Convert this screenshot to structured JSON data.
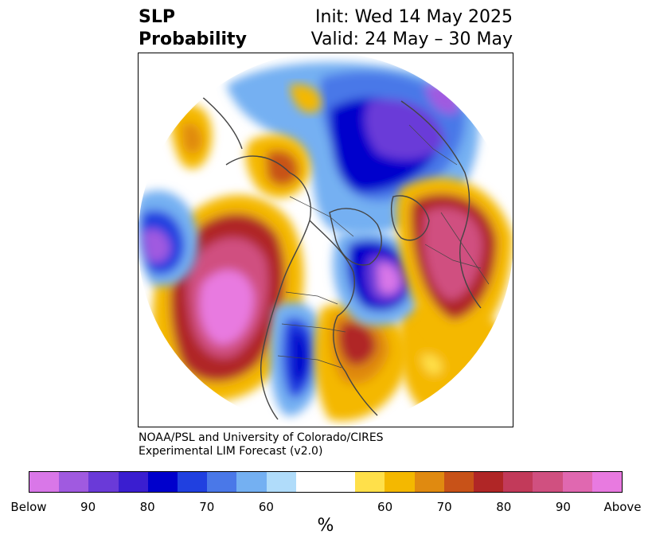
{
  "title": {
    "left_line1": "SLP",
    "left_line2": "Probability",
    "right_line1": "Init: Wed 14 May 2025",
    "right_line2": "Valid: 24 May – 30 May"
  },
  "credit": {
    "line1": "NOAA/PSL and University of Colorado/CIRES",
    "line2": "Experimental LIM Forecast (v2.0)"
  },
  "colorbar": {
    "unit": "%",
    "colors": [
      "#d977e8",
      "#a05ae0",
      "#6a3ad8",
      "#3a1ed0",
      "#0000cc",
      "#2040e0",
      "#4a78e8",
      "#74b0f2",
      "#b0dcfa",
      "#ffffff",
      "#ffffff",
      "#ffe04a",
      "#f4b800",
      "#e08a10",
      "#c85218",
      "#b02626",
      "#c23a5a",
      "#d05080",
      "#e068b0",
      "#e87ae0"
    ],
    "tick_labels": [
      "Below",
      "90",
      "80",
      "70",
      "60",
      "60",
      "70",
      "80",
      "90",
      "Above"
    ]
  },
  "map_colors": {
    "below_strong": "#d977e8",
    "below_mid": "#6a3ad8",
    "below_core": "#0000cc",
    "below_light": "#74b0f2",
    "below_faint": "#b0dcfa",
    "above_faint": "#ffe04a",
    "above_light": "#f4b800",
    "above_mid": "#e08a10",
    "above_deep": "#b02626",
    "above_strong": "#e87ae0",
    "coast": "#444444"
  }
}
